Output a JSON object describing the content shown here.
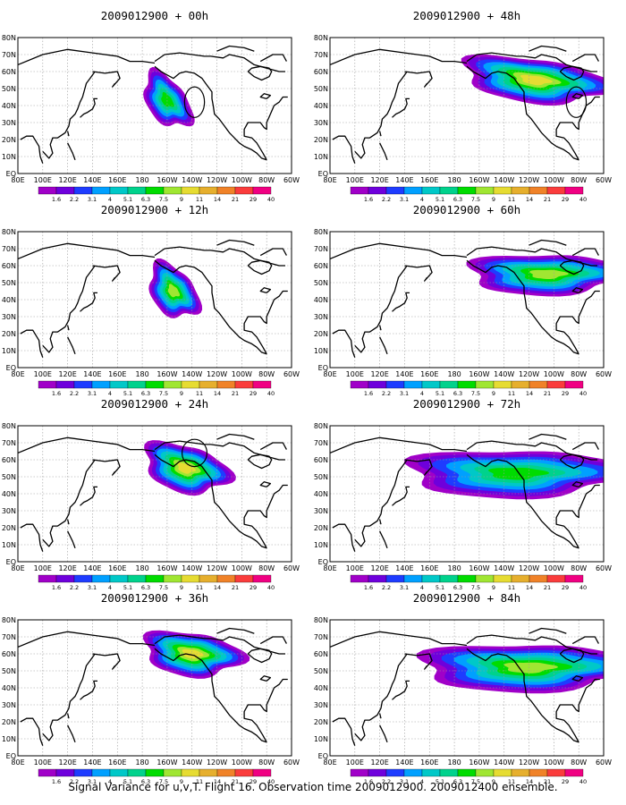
{
  "figure": {
    "caption": "Signal Variance for u,v,T. Flight 16. Observation time 2009012900. 2009012400 ensemble."
  },
  "panels": [
    {
      "title": "2009012900 + 00h",
      "lead": "00h",
      "blobs": [
        {
          "lon": 200,
          "lat": 43,
          "rx": 22,
          "ry": 13,
          "rot": -35,
          "peak": 7
        }
      ],
      "circles": [
        {
          "lon": 222,
          "lat": 42,
          "rlon": 8,
          "rlat": 9,
          "color": "#000000"
        }
      ]
    },
    {
      "title": "2009012900 + 12h",
      "lead": "12h",
      "blobs": [
        {
          "lon": 205,
          "lat": 45,
          "rx": 22,
          "ry": 14,
          "rot": -30,
          "peak": 8
        }
      ]
    },
    {
      "title": "2009012900 + 24h",
      "lead": "24h",
      "blobs": [
        {
          "lon": 215,
          "lat": 55,
          "rx": 35,
          "ry": 14,
          "rot": -10,
          "peak": 9
        }
      ],
      "circles": [
        {
          "lon": 222,
          "lat": 64,
          "rlon": 10,
          "rlat": 8,
          "color": "#000000"
        }
      ]
    },
    {
      "title": "2009012900 + 36h",
      "lead": "36h",
      "blobs": [
        {
          "lon": 220,
          "lat": 60,
          "rx": 40,
          "ry": 13,
          "rot": -5,
          "peak": 9
        }
      ]
    },
    {
      "title": "2009012900 + 48h",
      "lead": "48h",
      "blobs": [
        {
          "lon": 245,
          "lat": 55,
          "rx": 60,
          "ry": 13,
          "rot": -5,
          "peak": 9
        }
      ],
      "circles": [
        {
          "lon": 278,
          "lat": 42,
          "rlon": 8,
          "rlat": 9,
          "color": "#000000"
        }
      ]
    },
    {
      "title": "2009012900 + 60h",
      "lead": "60h",
      "blobs": [
        {
          "lon": 255,
          "lat": 55,
          "rx": 65,
          "ry": 12,
          "rot": 0,
          "peak": 8
        }
      ]
    },
    {
      "title": "2009012900 + 72h",
      "lead": "72h",
      "blobs": [
        {
          "lon": 230,
          "lat": 52,
          "rx": 90,
          "ry": 14,
          "rot": 0,
          "peak": 7
        }
      ]
    },
    {
      "title": "2009012900 + 84h",
      "lead": "84h",
      "blobs": [
        {
          "lon": 240,
          "lat": 52,
          "rx": 90,
          "ry": 14,
          "rot": 0,
          "peak": 8
        }
      ]
    }
  ],
  "colorbar": {
    "labels": [
      "1.6",
      "2.2",
      "3.1",
      "4",
      "5.1",
      "6.3",
      "7.5",
      "9",
      "11",
      "14",
      "21",
      "29",
      "40"
    ],
    "colors": [
      "#a000c8",
      "#6e00dc",
      "#1e3cff",
      "#00a0ff",
      "#00c8c8",
      "#00d28c",
      "#00dc00",
      "#a0e632",
      "#e6dc32",
      "#e6af2d",
      "#f08228",
      "#fa3c3c",
      "#f00082"
    ]
  },
  "axes": {
    "x_ticks": [
      "80E",
      "100E",
      "120E",
      "140E",
      "160E",
      "180",
      "160W",
      "140W",
      "120W",
      "100W",
      "80W",
      "60W"
    ],
    "y_ticks": [
      "EQ",
      "10N",
      "20N",
      "30N",
      "40N",
      "50N",
      "60N",
      "70N",
      "80N"
    ],
    "lon_range": [
      80,
      300
    ],
    "lat_range": [
      0,
      80
    ],
    "grid": "dotted"
  }
}
